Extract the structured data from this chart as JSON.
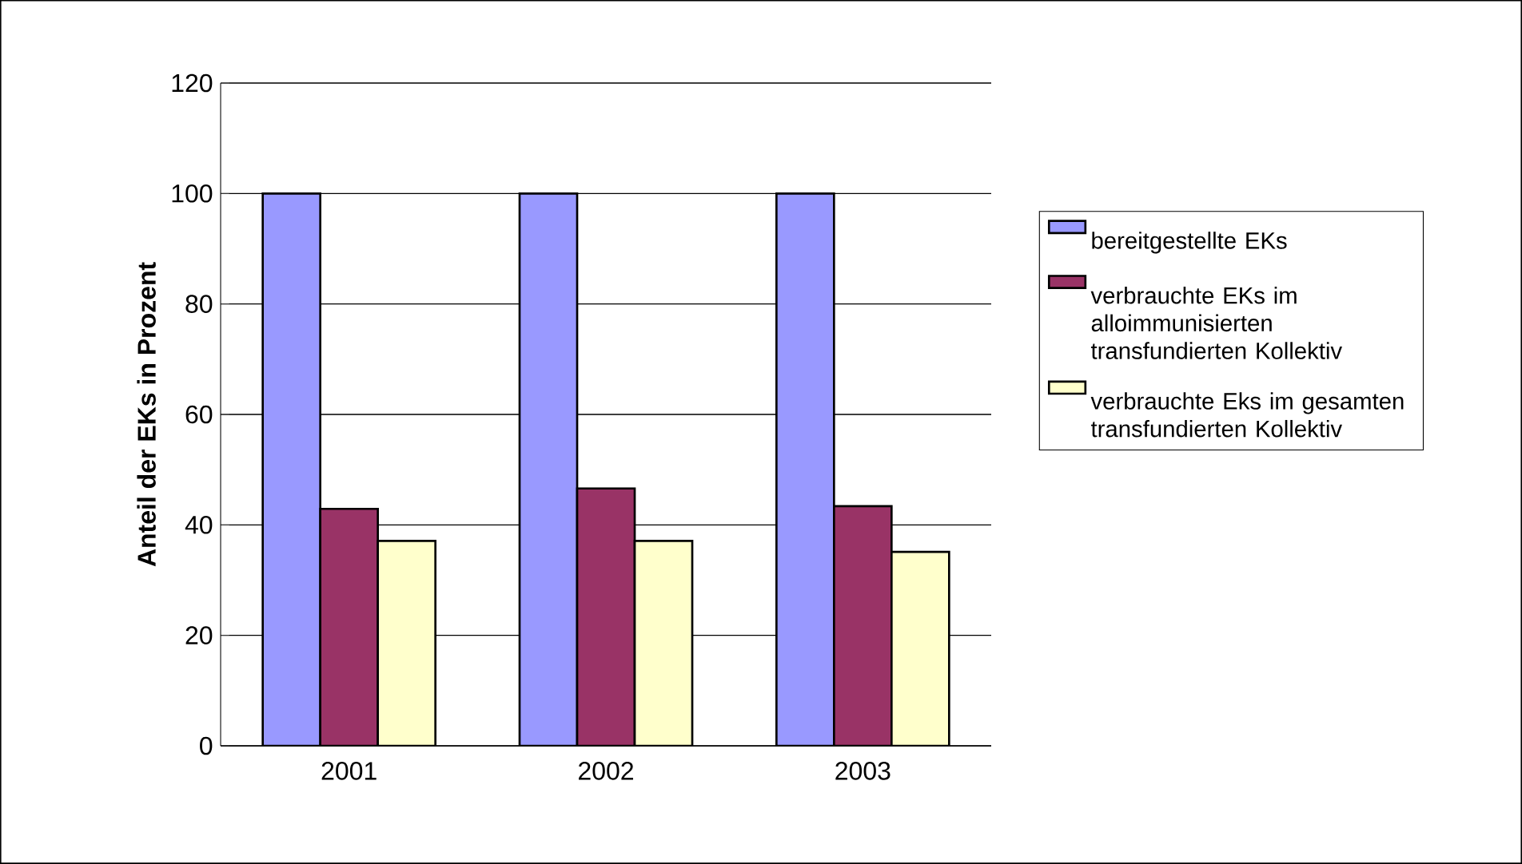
{
  "chart_data": {
    "type": "bar",
    "ylabel": "**Anteil der EKs in Prozent**",
    "categories": [
      "2001",
      "2002",
      "2003"
    ],
    "series": [
      {
        "name": "bereitgestellte EKs",
        "color": "#9999ff",
        "values": [
          100,
          100,
          100
        ]
      },
      {
        "name": "verbrauchte EKs im alloimmunisierten transfundierten Kollektiv",
        "color": "#993366",
        "values": [
          42.9,
          46.6,
          43.4
        ]
      },
      {
        "name": "verbrauchte Eks im gesamten transfundierten Kollektiv",
        "color": "#ffffcc",
        "values": [
          37.1,
          37.1,
          35.1
        ]
      }
    ],
    "ylim": [
      0,
      120
    ],
    "yticks": [
      0,
      20,
      40,
      60,
      80,
      100,
      120
    ],
    "grid": "y",
    "legend": "right"
  }
}
